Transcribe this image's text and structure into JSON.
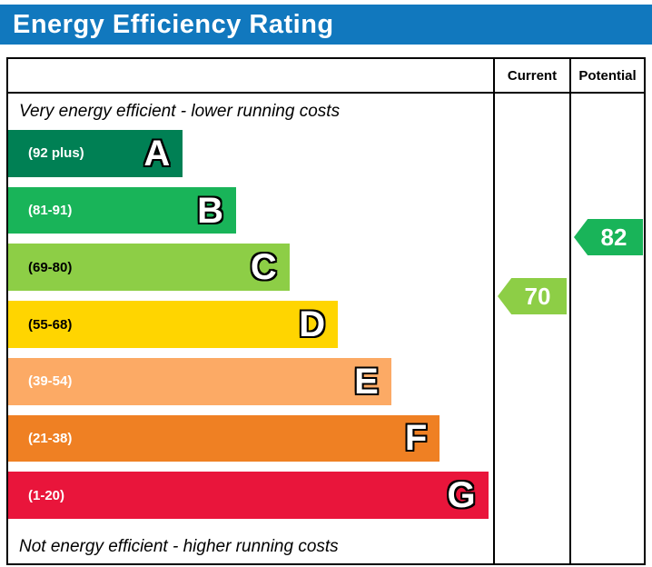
{
  "title": "Energy Efficiency Rating",
  "columns": {
    "current": "Current",
    "potential": "Potential"
  },
  "chart_data": {
    "type": "bar",
    "title": "Energy Efficiency Rating",
    "top_label": "Very energy efficient - lower running costs",
    "bottom_label": "Not energy efficient - higher running costs",
    "legend_position": "none",
    "bands": [
      {
        "letter": "A",
        "range": "(92 plus)",
        "color": "#008054",
        "label_color": "#ffffff",
        "width_pct": 36
      },
      {
        "letter": "B",
        "range": "(81-91)",
        "color": "#19b459",
        "label_color": "#ffffff",
        "width_pct": 47
      },
      {
        "letter": "C",
        "range": "(69-80)",
        "color": "#8dce46",
        "label_color": "#000000",
        "width_pct": 58
      },
      {
        "letter": "D",
        "range": "(55-68)",
        "color": "#ffd500",
        "label_color": "#000000",
        "width_pct": 68
      },
      {
        "letter": "E",
        "range": "(39-54)",
        "color": "#fcaa65",
        "label_color": "#ffffff",
        "width_pct": 79
      },
      {
        "letter": "F",
        "range": "(21-38)",
        "color": "#ef8023",
        "label_color": "#ffffff",
        "width_pct": 89
      },
      {
        "letter": "G",
        "range": "(1-20)",
        "color": "#e9153b",
        "label_color": "#ffffff",
        "width_pct": 99
      }
    ],
    "current": {
      "value": "70",
      "band": "C",
      "color": "#8dce46"
    },
    "potential": {
      "value": "82",
      "band": "B",
      "color": "#19b459"
    }
  }
}
